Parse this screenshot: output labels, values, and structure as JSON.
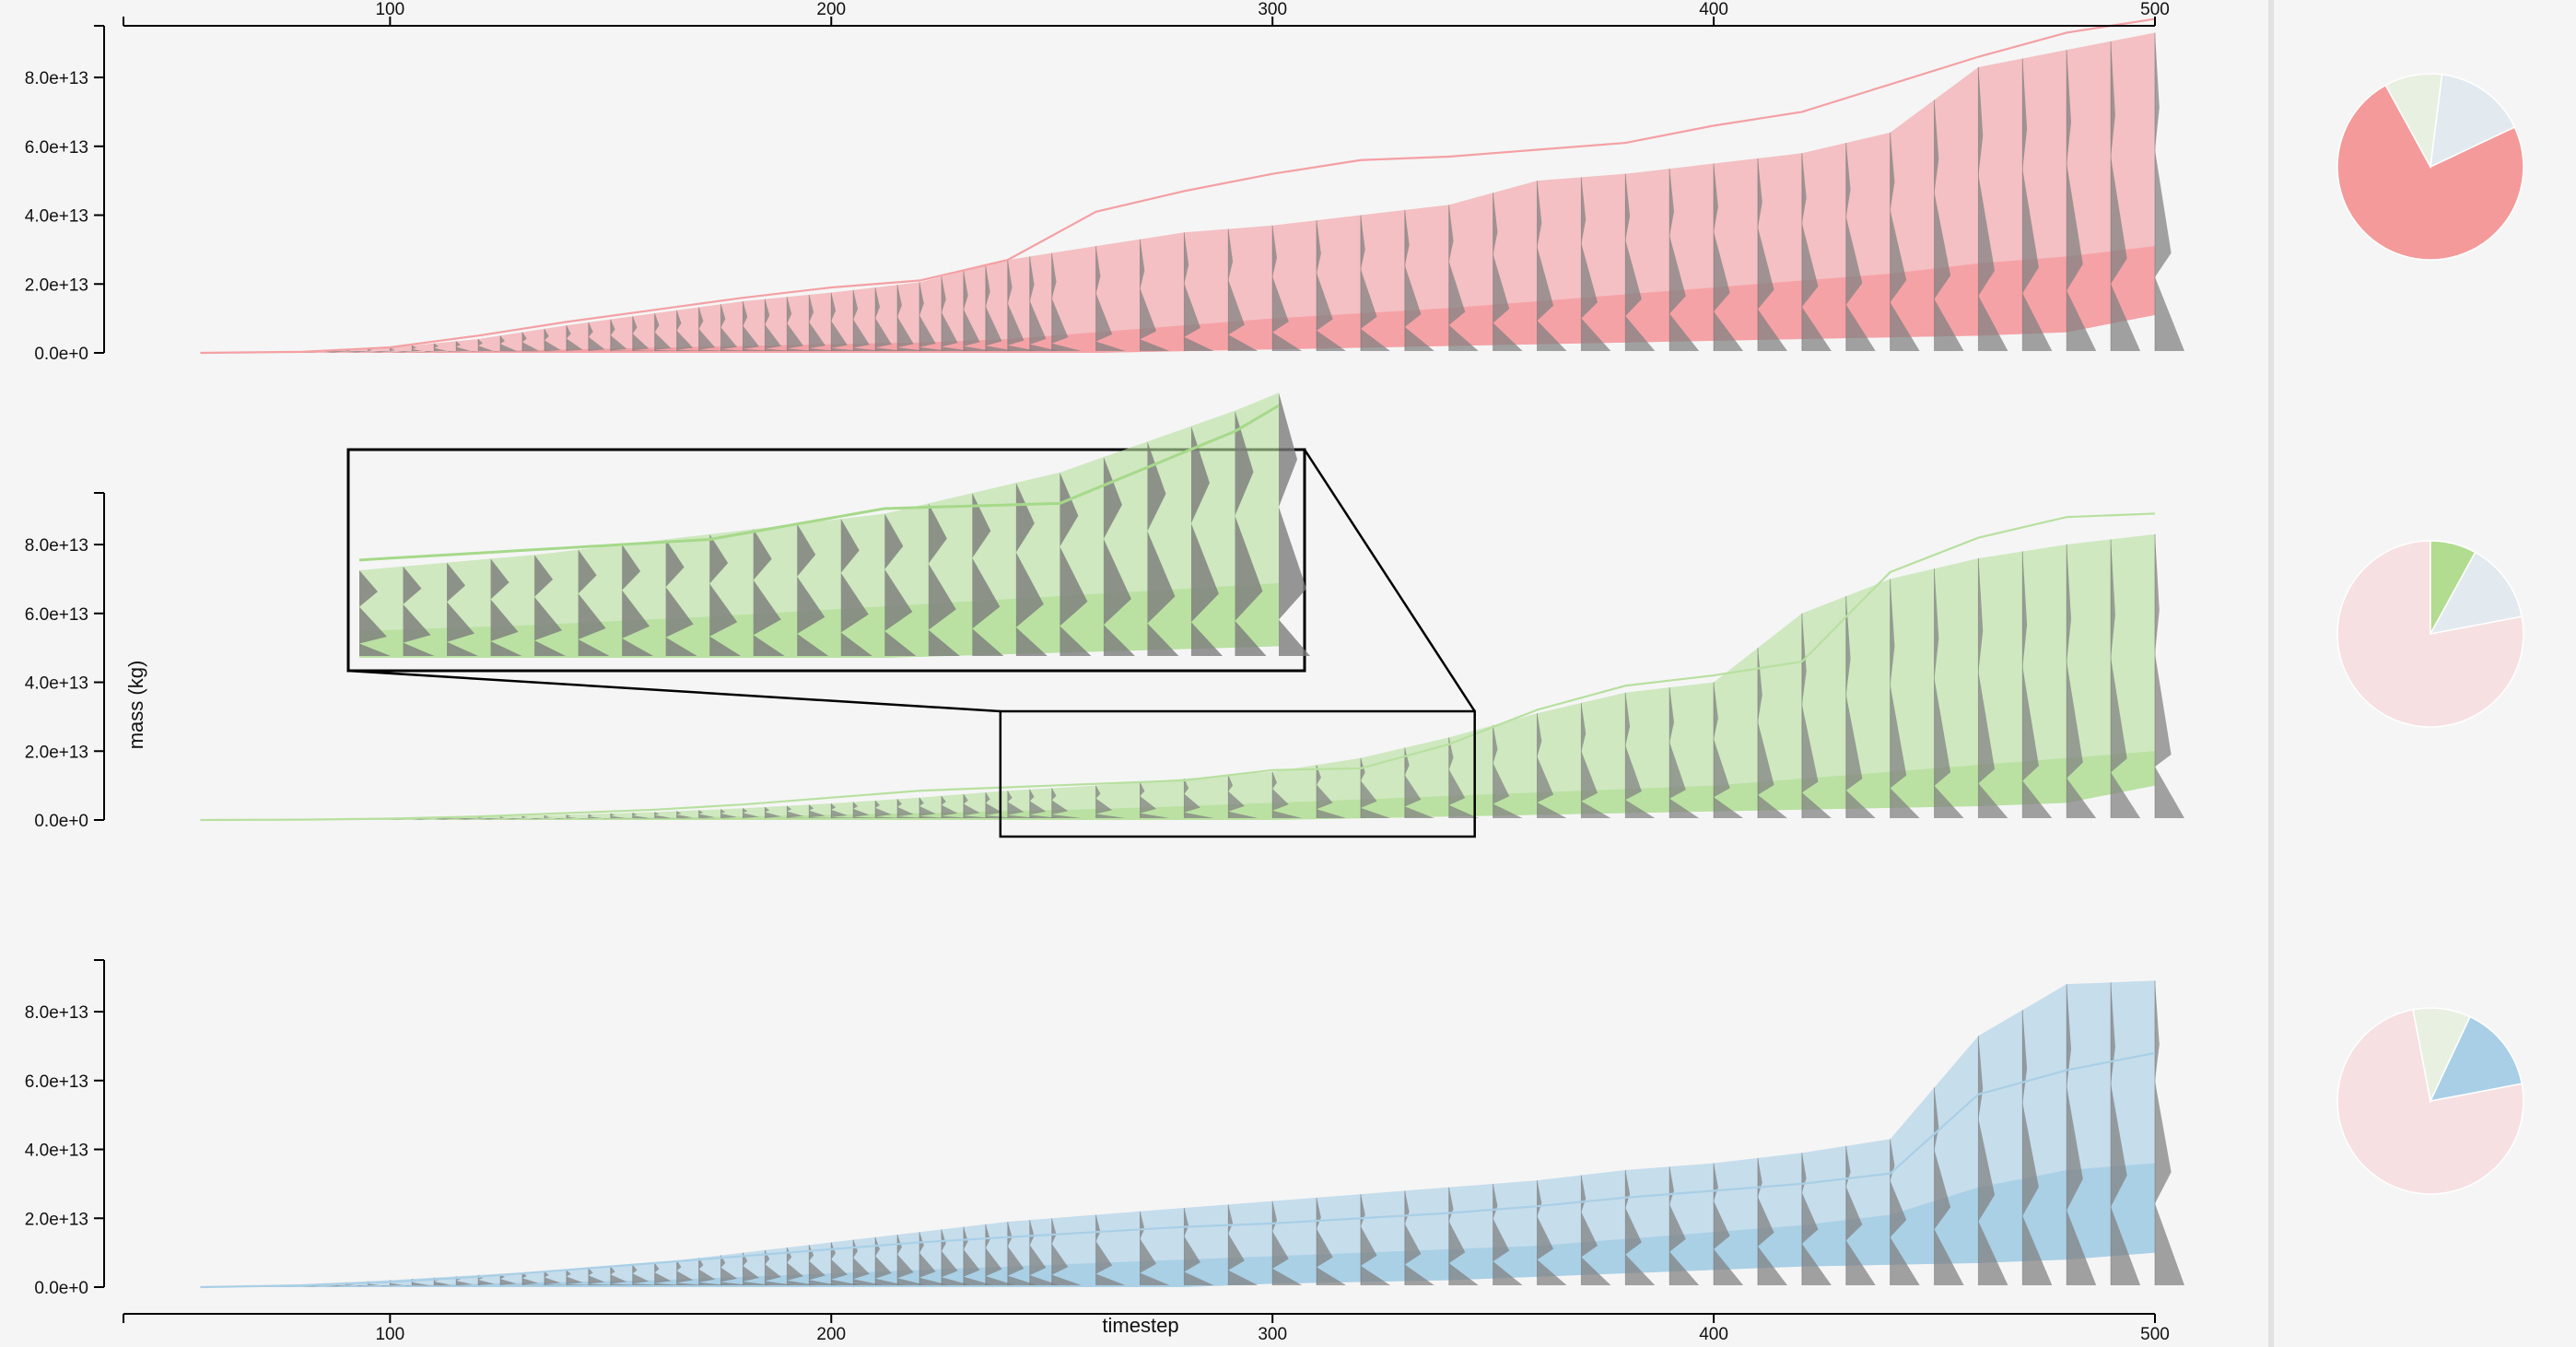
{
  "chart_data": {
    "type": "area",
    "xlabel": "timestep",
    "ylabel": "mass (kg)",
    "xlim": [
      40,
      500
    ],
    "ylim": [
      0,
      95000000000000.0
    ],
    "x_ticks": [
      100,
      200,
      300,
      400,
      500
    ],
    "y_ticks": [
      0,
      20000000000000.0,
      40000000000000.0,
      60000000000000.0,
      80000000000000.0
    ],
    "y_tick_labels": [
      "0.0e+0",
      "2.0e+13",
      "4.0e+13",
      "6.0e+13",
      "8.0e+13"
    ],
    "x": [
      57,
      80,
      100,
      120,
      140,
      160,
      180,
      200,
      220,
      240,
      260,
      280,
      300,
      320,
      340,
      360,
      380,
      400,
      420,
      440,
      460,
      480,
      500
    ],
    "panels": [
      {
        "color": "#f4a0a4",
        "band_outer": [
          0,
          300000000000.0,
          1500000000000.0,
          4000000000000.0,
          8000000000000.0,
          11500000000000.0,
          15000000000000.0,
          17500000000000.0,
          20500000000000.0,
          27000000000000.0,
          31000000000000.0,
          35000000000000.0,
          37000000000000.0,
          40000000000000.0,
          43000000000000.0,
          50000000000000.0,
          52000000000000.0,
          55000000000000.0,
          58000000000000.0,
          64000000000000.0,
          83000000000000.0,
          88000000000000.0,
          93000000000000.0
        ],
        "band_inner": [
          0,
          50000000000.0,
          200000000000.0,
          500000000000.0,
          1000000000000.0,
          1500000000000.0,
          2000000000000.0,
          2500000000000.0,
          3000000000000.0,
          4000000000000.0,
          6000000000000.0,
          8000000000000.0,
          10000000000000.0,
          11500000000000.0,
          13000000000000.0,
          15000000000000.0,
          17000000000000.0,
          19000000000000.0,
          21000000000000.0,
          23000000000000.0,
          26000000000000.0,
          28000000000000.0,
          31000000000000.0
        ],
        "band_lower": [
          0,
          0,
          0,
          0,
          0,
          0,
          0,
          0,
          0,
          0,
          0,
          500000000000.0,
          1000000000000.0,
          1500000000000.0,
          2000000000000.0,
          2500000000000.0,
          3000000000000.0,
          3500000000000.0,
          4000000000000.0,
          4500000000000.0,
          5000000000000.0,
          6000000000000.0,
          11000000000000.0
        ],
        "line": [
          0,
          300000000000.0,
          1600000000000.0,
          5000000000000.0,
          9000000000000.0,
          12500000000000.0,
          16000000000000.0,
          19000000000000.0,
          21000000000000.0,
          27000000000000.0,
          41000000000000.0,
          47000000000000.0,
          52000000000000.0,
          56000000000000.0,
          57000000000000.0,
          59000000000000.0,
          61000000000000.0,
          66000000000000.0,
          70000000000000.0,
          78000000000000.0,
          86000000000000.0,
          93000000000000.0,
          97000000000000.0
        ],
        "pie": [
          {
            "value": 74,
            "color": "#f49a9a"
          },
          {
            "value": 10,
            "color": "#e8f0e2"
          },
          {
            "value": 16,
            "color": "#e2eaf0"
          }
        ]
      },
      {
        "color": "#b8e0a0",
        "band_outer": [
          0,
          100000000000.0,
          300000000000.0,
          800000000000.0,
          1500000000000.0,
          2300000000000.0,
          3400000000000.0,
          4800000000000.0,
          6500000000000.0,
          8500000000000.0,
          10000000000000.0,
          12000000000000.0,
          14000000000000.0,
          18000000000000.0,
          24000000000000.0,
          31000000000000.0,
          37000000000000.0,
          40000000000000.0,
          60000000000000.0,
          70000000000000.0,
          76000000000000.0,
          80000000000000.0,
          83000000000000.0
        ],
        "band_inner": [
          0,
          30000000000.0,
          100000000000.0,
          200000000000.0,
          400000000000.0,
          700000000000.0,
          1000000000000.0,
          1500000000000.0,
          2000000000000.0,
          2600000000000.0,
          3200000000000.0,
          4000000000000.0,
          5000000000000.0,
          6000000000000.0,
          7000000000000.0,
          8000000000000.0,
          9000000000000.0,
          10000000000000.0,
          12000000000000.0,
          14000000000000.0,
          16000000000000.0,
          18000000000000.0,
          20000000000000.0
        ],
        "band_lower": [
          0,
          0,
          0,
          0,
          0,
          0,
          0,
          0,
          0,
          0,
          0,
          0,
          0,
          500000000000.0,
          1000000000000.0,
          1500000000000.0,
          2000000000000.0,
          2500000000000.0,
          3000000000000.0,
          3500000000000.0,
          4000000000000.0,
          5000000000000.0,
          10000000000000.0
        ],
        "line": [
          0,
          100000000000.0,
          400000000000.0,
          1000000000000.0,
          2000000000000.0,
          3000000000000.0,
          4500000000000.0,
          6500000000000.0,
          8500000000000.0,
          9500000000000.0,
          10500000000000.0,
          11500000000000.0,
          14500000000000.0,
          15000000000000.0,
          22000000000000.0,
          32000000000000.0,
          39000000000000.0,
          42000000000000.0,
          46000000000000.0,
          72000000000000.0,
          82000000000000.0,
          88000000000000.0,
          89000000000000.0
        ],
        "pie": [
          {
            "value": 78,
            "color": "#f7e0e2"
          },
          {
            "value": 8,
            "color": "#b2dc90"
          },
          {
            "value": 14,
            "color": "#e2eaf0"
          }
        ]
      },
      {
        "color": "#a9cfe6",
        "band_outer": [
          0,
          800000000000.0,
          2000000000000.0,
          3500000000000.0,
          5000000000000.0,
          7000000000000.0,
          10000000000000.0,
          13000000000000.0,
          16000000000000.0,
          19000000000000.0,
          21000000000000.0,
          23000000000000.0,
          25000000000000.0,
          27000000000000.0,
          29000000000000.0,
          31000000000000.0,
          34000000000000.0,
          36000000000000.0,
          39000000000000.0,
          43000000000000.0,
          73000000000000.0,
          88000000000000.0,
          89000000000000.0
        ],
        "band_inner": [
          0,
          200000000000.0,
          500000000000.0,
          1000000000000.0,
          1500000000000.0,
          2000000000000.0,
          3000000000000.0,
          4000000000000.0,
          5000000000000.0,
          6000000000000.0,
          7000000000000.0,
          8000000000000.0,
          9000000000000.0,
          10000000000000.0,
          11000000000000.0,
          12000000000000.0,
          14000000000000.0,
          16000000000000.0,
          18000000000000.0,
          21000000000000.0,
          29000000000000.0,
          34000000000000.0,
          36000000000000.0
        ],
        "band_lower": [
          0,
          0,
          0,
          0,
          0,
          0,
          0,
          0,
          0,
          0,
          0,
          0,
          1000000000000.0,
          1500000000000.0,
          2000000000000.0,
          3000000000000.0,
          4000000000000.0,
          5000000000000.0,
          6000000000000.0,
          6500000000000.0,
          7000000000000.0,
          8000000000000.0,
          10000000000000.0
        ],
        "line": [
          0,
          500000000000.0,
          1500000000000.0,
          3000000000000.0,
          5000000000000.0,
          7000000000000.0,
          9000000000000.0,
          11000000000000.0,
          13000000000000.0,
          14500000000000.0,
          16000000000000.0,
          17500000000000.0,
          18500000000000.0,
          20000000000000.0,
          21500000000000.0,
          23500000000000.0,
          26000000000000.0,
          28000000000000.0,
          30000000000000.0,
          33000000000000.0,
          56000000000000.0,
          63000000000000.0,
          68000000000000.0
        ],
        "pie": [
          {
            "value": 75,
            "color": "#f7e0e2"
          },
          {
            "value": 10,
            "color": "#e8f0e2"
          },
          {
            "value": 15,
            "color": "#a9cfe6"
          }
        ]
      }
    ],
    "zoom": {
      "panel": 1,
      "x_from": 240,
      "x_to": 345
    }
  }
}
